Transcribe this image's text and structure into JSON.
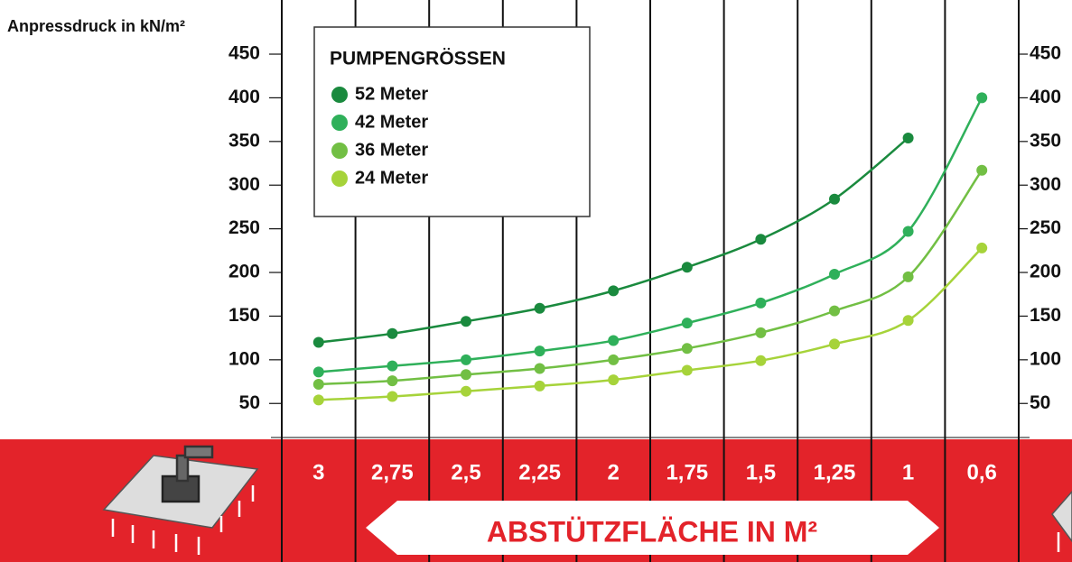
{
  "chart_data": {
    "type": "line",
    "y_axis_label": "Anpressdruck in kN/m²",
    "x_axis_label": "ABSTÜTZFLÄCHE IN M²",
    "legend_title": "PUMPENGRÖSSEN",
    "categories": [
      "3",
      "2,75",
      "2,5",
      "2,25",
      "2",
      "1,75",
      "1,5",
      "1,25",
      "1",
      "0,6"
    ],
    "series": [
      {
        "name": "52 Meter",
        "color": "#1a8a3e",
        "values": [
          120,
          130,
          144,
          159,
          179,
          206,
          238,
          284,
          354,
          null
        ]
      },
      {
        "name": "42 Meter",
        "color": "#2fb05a",
        "values": [
          86,
          93,
          100,
          110,
          122,
          142,
          165,
          198,
          247,
          400
        ]
      },
      {
        "name": "36 Meter",
        "color": "#72bf44",
        "values": [
          72,
          76,
          83,
          90,
          100,
          113,
          131,
          156,
          195,
          317
        ]
      },
      {
        "name": "24 Meter",
        "color": "#a6d33a",
        "values": [
          54,
          58,
          64,
          70,
          77,
          88,
          99,
          118,
          145,
          228
        ]
      }
    ],
    "ylim": [
      11,
      512
    ],
    "yticks": [
      50,
      100,
      150,
      200,
      250,
      300,
      350,
      400,
      450
    ]
  }
}
